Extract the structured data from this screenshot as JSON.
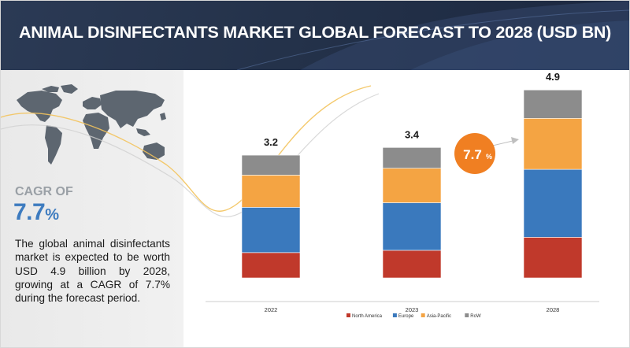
{
  "header": {
    "title": "ANIMAL DISINFECTANTS MARKET GLOBAL FORECAST TO 2028 (USD BN)"
  },
  "left_panel": {
    "cagr_label": "CAGR OF",
    "cagr_value": "7.7",
    "cagr_unit": "%",
    "description": "The global animal disinfectants market is expected to be worth USD 4.9 billion by 2028, growing at a CAGR of 7.7% during the forecast period."
  },
  "callout": {
    "value": "7.7",
    "unit": "%",
    "color": "#f07f22"
  },
  "colors": {
    "header_bg": "#24324a",
    "accent_blue": "#3d7bbf"
  },
  "chart_data": {
    "type": "bar",
    "stacked": true,
    "categories": [
      "2022",
      "2023",
      "2028"
    ],
    "totals": [
      "3.2",
      "3.4",
      "4.9"
    ],
    "series": [
      {
        "name": "North America",
        "color": "#c0392b",
        "values": [
          0.66,
          0.72,
          1.06
        ]
      },
      {
        "name": "Europe",
        "color": "#3a79bd",
        "values": [
          1.18,
          1.24,
          1.77
        ]
      },
      {
        "name": "Asia-Pacific",
        "color": "#f4a443",
        "values": [
          0.84,
          0.9,
          1.33
        ]
      },
      {
        "name": "RoW",
        "color": "#8c8c8c",
        "values": [
          0.52,
          0.54,
          0.74
        ]
      }
    ],
    "ylim": [
      0,
      5.5
    ],
    "grid": false,
    "legend_position": "bottom"
  }
}
